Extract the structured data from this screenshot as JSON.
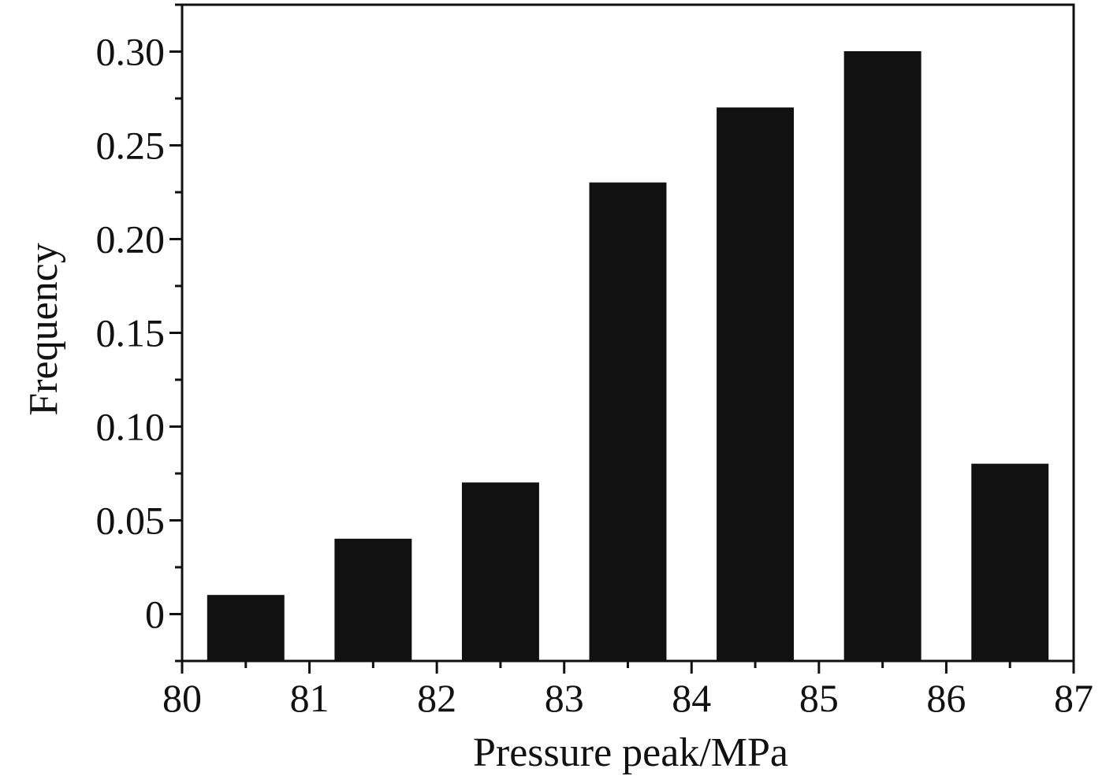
{
  "chart_data": {
    "type": "bar",
    "title": "",
    "xlabel": "Pressure peak/MPa",
    "ylabel": "Frequency",
    "bins": [
      {
        "from": 80,
        "to": 81,
        "value": 0.01
      },
      {
        "from": 81,
        "to": 82,
        "value": 0.04
      },
      {
        "from": 82,
        "to": 83,
        "value": 0.07
      },
      {
        "from": 83,
        "to": 84,
        "value": 0.23
      },
      {
        "from": 84,
        "to": 85,
        "value": 0.27
      },
      {
        "from": 85,
        "to": 86,
        "value": 0.3
      },
      {
        "from": 86,
        "to": 87,
        "value": 0.08
      }
    ],
    "xlim": [
      80,
      87
    ],
    "ylim": [
      -0.025,
      0.325
    ],
    "xticks": [
      80,
      81,
      82,
      83,
      84,
      85,
      86,
      87
    ],
    "xtick_labels": [
      "80",
      "81",
      "82",
      "83",
      "84",
      "85",
      "86",
      "87"
    ],
    "yticks": [
      0,
      0.05,
      0.1,
      0.15,
      0.2,
      0.25,
      0.3
    ],
    "ytick_labels": [
      "0",
      "0.05",
      "0.10",
      "0.15",
      "0.20",
      "0.25",
      "0.30"
    ],
    "bar_color": "#111111",
    "grid": false,
    "legend": "none"
  }
}
